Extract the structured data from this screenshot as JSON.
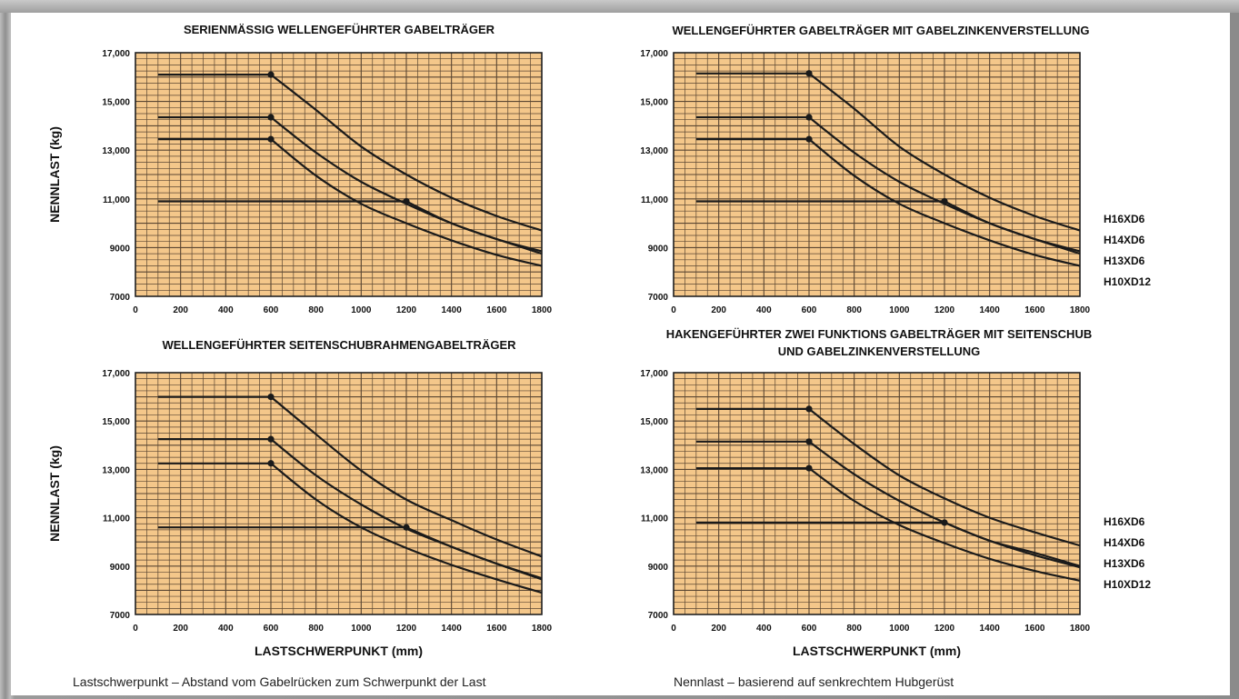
{
  "colors": {
    "plot_bg": "#f4c78a",
    "grid": "#5a4632",
    "line": "#1a1a1a"
  },
  "notes": {
    "left": "Lastschwerpunkt – Abstand vom Gabelrücken zum Schwerpunkt der Last",
    "right": "Nennlast – basierend auf senkrechtem Hubgerüst"
  },
  "chart_data": [
    {
      "type": "line",
      "title": [
        "SERIENMÄSSIG WELLENGEFÜHRTER GABELTRÄGER"
      ],
      "xlabel": "",
      "ylabel": "NENNLAST (kg)",
      "xlim": [
        0,
        1800
      ],
      "ylim": [
        7000,
        17000
      ],
      "x_ticks": [
        "0",
        "200",
        "400",
        "600",
        "800",
        "1000",
        "1200",
        "1400",
        "1600",
        "1800"
      ],
      "y_ticks": [
        "7000",
        "9000",
        "11,000",
        "13,000",
        "15,000",
        "17,000"
      ],
      "legend": [],
      "series": [
        {
          "x": [
            100,
            600,
            800,
            1000,
            1200,
            1400,
            1600,
            1800
          ],
          "y": [
            16100,
            16100,
            14650,
            13150,
            12000,
            11050,
            10300,
            9700
          ]
        },
        {
          "x": [
            100,
            600,
            800,
            1000,
            1200,
            1400,
            1600,
            1800
          ],
          "y": [
            14350,
            14350,
            12900,
            11700,
            10800,
            10000,
            9350,
            8850
          ]
        },
        {
          "x": [
            100,
            600,
            800,
            1000,
            1200,
            1400,
            1600,
            1800
          ],
          "y": [
            13450,
            13450,
            11950,
            10800,
            10000,
            9300,
            8700,
            8250
          ]
        },
        {
          "x": [
            100,
            1200,
            1400,
            1600,
            1800
          ],
          "y": [
            10900,
            10900,
            10000,
            9350,
            8750
          ]
        }
      ],
      "markers": [
        {
          "x": 600,
          "y": 16100
        },
        {
          "x": 600,
          "y": 14350
        },
        {
          "x": 600,
          "y": 13450
        },
        {
          "x": 1200,
          "y": 10900
        }
      ]
    },
    {
      "type": "line",
      "title": [
        "WELLENGEFÜHRTER GABELTRÄGER MIT GABELZINKENVERSTELLUNG"
      ],
      "xlabel": "",
      "ylabel": "",
      "xlim": [
        0,
        1800
      ],
      "ylim": [
        7000,
        17000
      ],
      "x_ticks": [
        "0",
        "200",
        "400",
        "600",
        "800",
        "1000",
        "1200",
        "1400",
        "1600",
        "1800"
      ],
      "y_ticks": [
        "7000",
        "9000",
        "11,000",
        "13,000",
        "15,000",
        "17,000"
      ],
      "legend": [
        "H16XD6",
        "H14XD6",
        "H13XD6",
        "H10XD12"
      ],
      "series": [
        {
          "x": [
            100,
            600,
            800,
            1000,
            1200,
            1400,
            1600,
            1800
          ],
          "y": [
            16150,
            16150,
            14700,
            13150,
            12000,
            11050,
            10300,
            9700
          ]
        },
        {
          "x": [
            100,
            600,
            800,
            1000,
            1200,
            1400,
            1600,
            1800
          ],
          "y": [
            14350,
            14350,
            12900,
            11700,
            10800,
            10000,
            9350,
            8850
          ]
        },
        {
          "x": [
            100,
            600,
            800,
            1000,
            1200,
            1400,
            1600,
            1800
          ],
          "y": [
            13450,
            13450,
            11950,
            10800,
            10000,
            9300,
            8700,
            8250
          ]
        },
        {
          "x": [
            100,
            1200,
            1400,
            1600,
            1800
          ],
          "y": [
            10900,
            10900,
            10000,
            9350,
            8750
          ]
        }
      ],
      "markers": [
        {
          "x": 600,
          "y": 16150
        },
        {
          "x": 600,
          "y": 14350
        },
        {
          "x": 600,
          "y": 13450
        },
        {
          "x": 1200,
          "y": 10900
        }
      ]
    },
    {
      "type": "line",
      "title": [
        "WELLENGEFÜHRTER SEITENSCHUBRAHMENGABELTRÄGER"
      ],
      "xlabel": "LASTSCHWERPUNKT (mm)",
      "ylabel": "NENNLAST (kg)",
      "xlim": [
        0,
        1800
      ],
      "ylim": [
        7000,
        17000
      ],
      "x_ticks": [
        "0",
        "200",
        "400",
        "600",
        "800",
        "1000",
        "1200",
        "1400",
        "1600",
        "1800"
      ],
      "y_ticks": [
        "7000",
        "9000",
        "11,000",
        "13,000",
        "15,000",
        "17,000"
      ],
      "legend": [],
      "series": [
        {
          "x": [
            100,
            600,
            800,
            1000,
            1200,
            1400,
            1600,
            1800
          ],
          "y": [
            16000,
            16000,
            14450,
            12950,
            11750,
            10900,
            10100,
            9400
          ]
        },
        {
          "x": [
            100,
            600,
            800,
            1000,
            1200,
            1400,
            1600,
            1800
          ],
          "y": [
            14250,
            14250,
            12750,
            11550,
            10550,
            9800,
            9100,
            8500
          ]
        },
        {
          "x": [
            100,
            600,
            800,
            1000,
            1200,
            1400,
            1600,
            1800
          ],
          "y": [
            13250,
            13250,
            11750,
            10600,
            9750,
            9050,
            8450,
            7900
          ]
        },
        {
          "x": [
            100,
            1200,
            1400,
            1600,
            1800
          ],
          "y": [
            10600,
            10600,
            9800,
            9100,
            8450
          ]
        }
      ],
      "markers": [
        {
          "x": 600,
          "y": 16000
        },
        {
          "x": 600,
          "y": 14250
        },
        {
          "x": 600,
          "y": 13250
        },
        {
          "x": 1200,
          "y": 10600
        }
      ]
    },
    {
      "type": "line",
      "title": [
        "HAKENGEFÜHRTER ZWEI FUNKTIONS GABELTRÄGER MIT SEITENSCHUB",
        "UND GABELZINKENVERSTELLUNG"
      ],
      "xlabel": "LASTSCHWERPUNKT (mm)",
      "ylabel": "",
      "xlim": [
        0,
        1800
      ],
      "ylim": [
        7000,
        17000
      ],
      "x_ticks": [
        "0",
        "200",
        "400",
        "600",
        "800",
        "1000",
        "1200",
        "1400",
        "1600",
        "1800"
      ],
      "y_ticks": [
        "7000",
        "9000",
        "11,000",
        "13,000",
        "15,000",
        "17,000"
      ],
      "legend": [
        "H16XD6",
        "H14XD6",
        "H13XD6",
        "H10XD12"
      ],
      "series": [
        {
          "x": [
            100,
            600,
            800,
            1000,
            1200,
            1400,
            1600,
            1800
          ],
          "y": [
            15500,
            15500,
            14050,
            12750,
            11800,
            11000,
            10400,
            9850
          ]
        },
        {
          "x": [
            100,
            600,
            800,
            1000,
            1200,
            1400,
            1600,
            1800
          ],
          "y": [
            14150,
            14150,
            12800,
            11700,
            10800,
            10050,
            9450,
            8950
          ]
        },
        {
          "x": [
            100,
            600,
            800,
            1000,
            1200,
            1400,
            1600,
            1800
          ],
          "y": [
            13050,
            13050,
            11700,
            10700,
            9950,
            9300,
            8800,
            8400
          ]
        },
        {
          "x": [
            100,
            1200,
            1400,
            1600,
            1800
          ],
          "y": [
            10800,
            10800,
            10050,
            9550,
            9000
          ]
        }
      ],
      "markers": [
        {
          "x": 600,
          "y": 15500
        },
        {
          "x": 600,
          "y": 14150
        },
        {
          "x": 600,
          "y": 13050
        },
        {
          "x": 1200,
          "y": 10800
        }
      ]
    }
  ]
}
